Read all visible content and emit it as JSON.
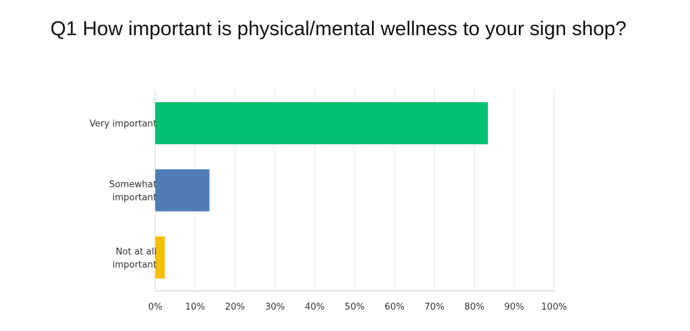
{
  "chart_data": {
    "type": "bar",
    "orientation": "horizontal",
    "title": "Q1 How important is physical/mental wellness to your sign shop?",
    "categories": [
      [
        "Very important"
      ],
      [
        "Somewhat",
        "important"
      ],
      [
        "Not at all",
        "important"
      ]
    ],
    "values": [
      83.4,
      13.6,
      2.4
    ],
    "unit": "%",
    "colors": [
      "#00bf6f",
      "#507cb6",
      "#f9be00"
    ],
    "xlim": [
      0,
      100
    ],
    "xticks": [
      0,
      10,
      20,
      30,
      40,
      50,
      60,
      70,
      80,
      90,
      100
    ],
    "xtick_labels": [
      "0%",
      "10%",
      "20%",
      "30%",
      "40%",
      "50%",
      "60%",
      "70%",
      "80%",
      "90%",
      "100%"
    ],
    "grid": true,
    "legend": "none"
  }
}
